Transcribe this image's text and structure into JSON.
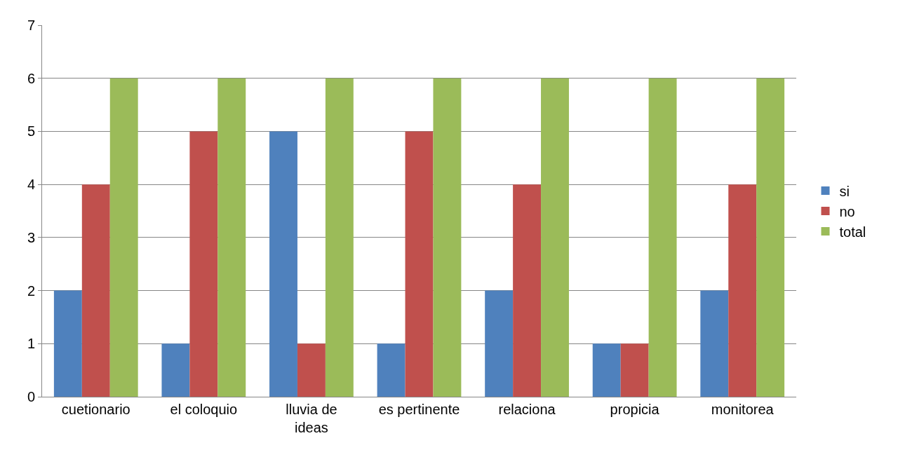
{
  "chart_data": {
    "type": "bar",
    "categories": [
      "cuetionario",
      "el coloquio",
      "lluvia de ideas",
      "es pertinente",
      "relaciona",
      "propicia",
      "monitorea"
    ],
    "series": [
      {
        "name": "si",
        "color": "#4f81bd",
        "values": [
          2,
          1,
          5,
          1,
          2,
          1,
          2
        ]
      },
      {
        "name": "no",
        "color": "#c0504d",
        "values": [
          4,
          5,
          1,
          5,
          4,
          1,
          4
        ]
      },
      {
        "name": "total",
        "color": "#9bbb59",
        "values": [
          6,
          6,
          6,
          6,
          6,
          6,
          6
        ]
      }
    ],
    "ylim": [
      0,
      7
    ],
    "yticks": [
      0,
      1,
      2,
      3,
      4,
      5,
      6,
      7
    ],
    "grid": "y",
    "legend": "right"
  }
}
